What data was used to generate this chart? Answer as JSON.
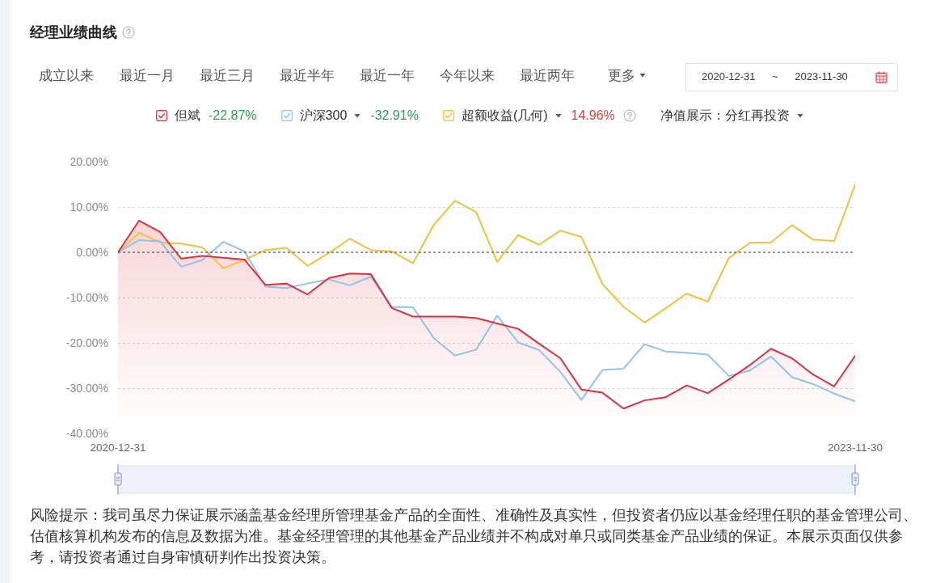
{
  "chart_data": {
    "type": "line",
    "title": "经理业绩曲线",
    "categories": [
      "2020-12-31",
      null,
      null,
      null,
      null,
      null,
      null,
      null,
      null,
      null,
      null,
      null,
      null,
      null,
      null,
      null,
      null,
      null,
      null,
      null,
      null,
      null,
      null,
      null,
      null,
      null,
      null,
      null,
      null,
      null,
      null,
      null,
      null,
      null,
      null,
      "2023-11-30"
    ],
    "series": [
      {
        "name": "但斌",
        "color": "#d8323f",
        "values": [
          0,
          7.0,
          4.5,
          -1.4,
          -0.8,
          -1.2,
          -1.6,
          -7.2,
          -6.9,
          -9.3,
          -5.7,
          -4.7,
          -4.8,
          -12.3,
          -14.2,
          -14.2,
          -14.2,
          -14.5,
          -15.7,
          -16.9,
          -20.2,
          -23.4,
          -30.3,
          -31.0,
          -34.5,
          -32.7,
          -32.0,
          -29.4,
          -31.1,
          -28.1,
          -24.9,
          -21.3,
          -23.4,
          -27.0,
          -29.6,
          -22.87
        ],
        "lower": [
          -40,
          -40,
          -40,
          -40,
          -40,
          -40,
          -40,
          -40,
          -40,
          -40,
          -40,
          -40,
          -40,
          -40,
          -40,
          -40,
          -40,
          -40,
          -40,
          -40,
          -40,
          -40,
          -40,
          -40,
          -40,
          -40,
          -40,
          -40,
          -40,
          -40,
          -40,
          -40,
          -40,
          -40,
          -40,
          -40
        ],
        "upper": [
          0,
          7.0,
          4.5,
          -1.4,
          -0.8,
          -1.2,
          -1.6,
          -7.2,
          -6.9,
          -9.3,
          -5.7,
          -4.7,
          -4.8,
          -12.3,
          -14.2,
          -14.2,
          -14.2,
          -14.5,
          -15.7,
          -16.9,
          -20.2,
          -23.4,
          -30.3,
          -31.0,
          -34.5,
          -32.7,
          -32.0,
          -29.4,
          -31.1,
          -28.1,
          -24.9,
          -21.3,
          -23.4,
          -27.0,
          -29.6,
          -22.87
        ]
      },
      {
        "name": "沪深300",
        "color": "#93c2ea",
        "values": [
          0,
          2.7,
          2.4,
          -3.2,
          -1.7,
          2.3,
          0.2,
          -7.6,
          -7.9,
          -6.9,
          -6.0,
          -7.3,
          -5.4,
          -12.1,
          -12.1,
          -19.0,
          -22.8,
          -21.5,
          -14.0,
          -19.9,
          -21.6,
          -26.4,
          -32.6,
          -26.0,
          -25.7,
          -20.3,
          -21.9,
          -22.2,
          -22.6,
          -27.3,
          -26.1,
          -23.0,
          -27.6,
          -29.1,
          -31.2,
          -32.91
        ]
      },
      {
        "name": "超额收益(几何)",
        "color": "#f2c13b",
        "values": [
          0,
          4.3,
          2.2,
          1.9,
          1.1,
          -3.5,
          -1.7,
          0.5,
          1.0,
          -3.0,
          -0.2,
          3.0,
          0.5,
          0.2,
          -2.4,
          6.1,
          11.4,
          8.9,
          -2.1,
          3.8,
          1.7,
          4.8,
          3.4,
          -7.0,
          -12.0,
          -15.5,
          -12.4,
          -9.1,
          -10.9,
          -1.3,
          2.1,
          2.2,
          6.0,
          2.8,
          2.5,
          14.96
        ]
      }
    ],
    "ylim": [
      -40,
      20
    ],
    "yticks": [
      {
        "value": -40,
        "label": "-40.00%"
      },
      {
        "value": -30,
        "label": "-30.00%"
      },
      {
        "value": -20,
        "label": "-20.00%"
      },
      {
        "value": -10,
        "label": "-10.00%"
      },
      {
        "value": 0,
        "label": "0.00%"
      },
      {
        "value": 10,
        "label": "10.00%"
      },
      {
        "value": 20,
        "label": "20.00%"
      }
    ],
    "grid": "y",
    "legend": "top",
    "ref_lines": [
      {
        "axis": "y",
        "value": 0,
        "color": "#444444",
        "line_style": "dotted"
      }
    ],
    "annotations": [
      "成立以来",
      "最近一月",
      "最近三月",
      "最近半年",
      "最近一年",
      "今年以来",
      "最近两年",
      "更多",
      "2020-12-31 ~ 2023-11-30",
      "-22.87%",
      "-32.91%",
      "14.96%",
      "净值展示：分红再投资",
      "风险提示：我司虽尽力保证展示涵盖基金经理所管理基金产品的全面性、准确性及真实性，但投资者仍应以基金经理任职的基金管理公司、估值核算机构发布的信息及数据为准。基金经理管理的其他基金产品业绩并不构成对单只或同类基金产品业绩的保证。本展示页面仅供参考，请投资者通过自身审慎研判作出投资决策。"
    ]
  }
}
